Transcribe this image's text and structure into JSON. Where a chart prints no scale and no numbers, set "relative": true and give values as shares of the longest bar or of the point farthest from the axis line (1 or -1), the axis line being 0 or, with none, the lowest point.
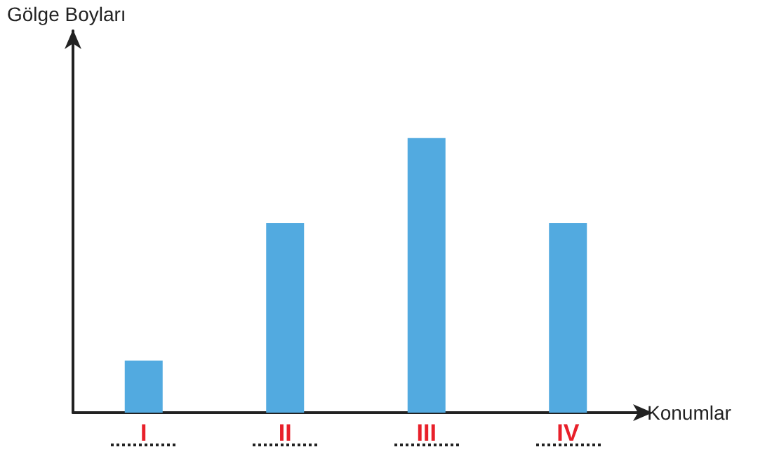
{
  "chart_data": {
    "type": "bar",
    "relative": true,
    "xlabel": "Konumlar",
    "annotations": [
      "Gölge Boyları"
    ],
    "categories": [
      "I",
      "II",
      "III",
      "IV"
    ],
    "values": [
      0.19,
      0.69,
      1,
      0.69
    ],
    "color": "#52aae0",
    "grid": false
  }
}
